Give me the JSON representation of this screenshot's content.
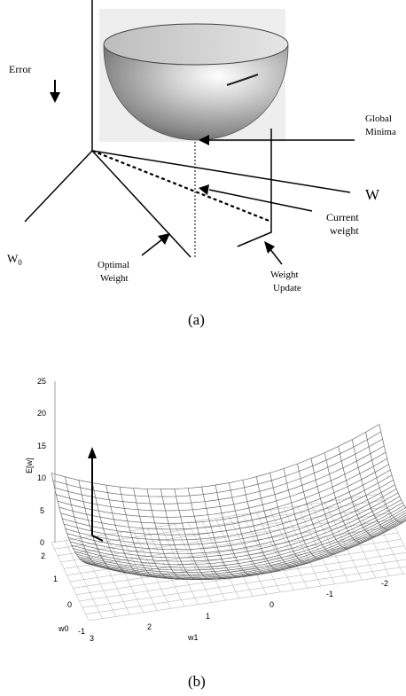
{
  "panel_a": {
    "caption": "(a)",
    "labels": {
      "error": "Error",
      "global_minima_line1": "Global",
      "global_minima_line2": "Minima",
      "w": "W",
      "w0_base": "W",
      "w0_sub": "0",
      "current_weight_line1": "Current",
      "current_weight_line2": "weight",
      "optimal_weight_line1": "Optimal",
      "optimal_weight_line2": "Weight",
      "weight_update_line1": "Weight",
      "weight_update_line2": "Update"
    }
  },
  "panel_b": {
    "caption": "(b)",
    "z_axis_label": "E[w]",
    "x_axis_label": "w1",
    "y_axis_label": "w0",
    "z_ticks": [
      "25",
      "20",
      "15",
      "10",
      "5",
      "0"
    ],
    "w0_ticks": [
      "2",
      "1",
      "0",
      "-1"
    ],
    "w1_ticks": [
      "3",
      "2",
      "1",
      "0",
      "-1",
      "-2"
    ]
  },
  "colors": {
    "ink": "#000000",
    "bowl_dark": "#6e6e6e",
    "bowl_light": "#f2f2f2",
    "bowl_bg": "#eeeeee"
  }
}
